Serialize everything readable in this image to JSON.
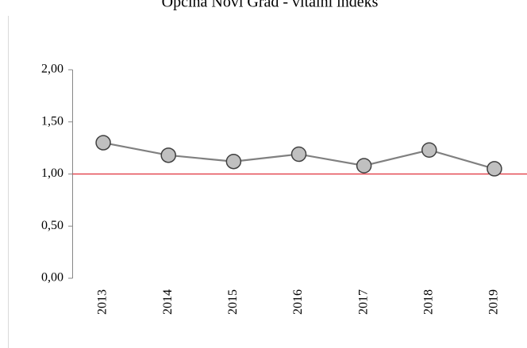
{
  "chart_data": {
    "type": "line",
    "title": "Općina Novi Grad - vitalni indeks",
    "categories": [
      "2013",
      "2014",
      "2015",
      "2016",
      "2017",
      "2018",
      "2019"
    ],
    "series": [
      {
        "name": "vitalni indeks",
        "color": "#808080",
        "marker_color": "#c0c0c0",
        "values": [
          1.3,
          1.18,
          1.12,
          1.19,
          1.08,
          1.23,
          1.05
        ]
      }
    ],
    "ylim": [
      0,
      2
    ],
    "yticks": [
      {
        "value": 0,
        "label": "0,00"
      },
      {
        "value": 0.5,
        "label": "0,50"
      },
      {
        "value": 1,
        "label": "1,00"
      },
      {
        "value": 1.5,
        "label": "1,50"
      },
      {
        "value": 2,
        "label": "2,00"
      }
    ],
    "reference_line": {
      "value": 1,
      "color": "#e0303a"
    }
  }
}
